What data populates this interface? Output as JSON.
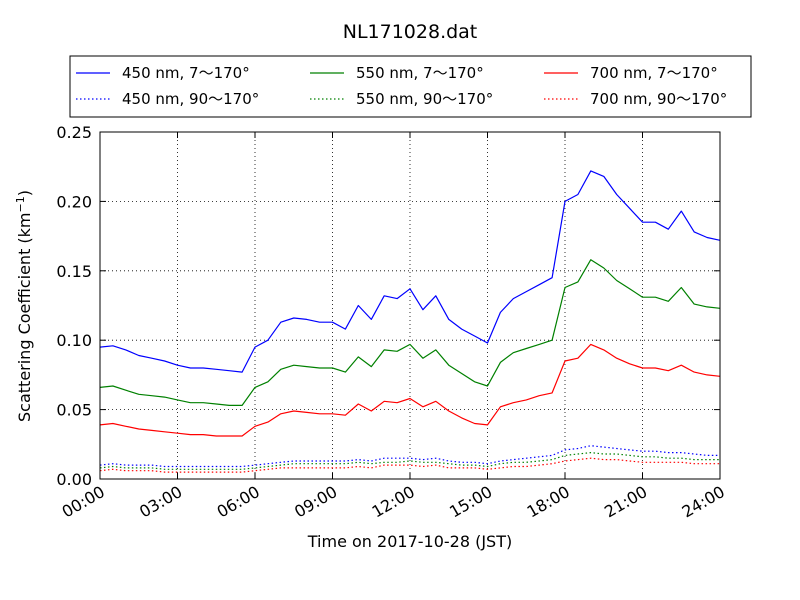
{
  "chart_data": {
    "type": "line",
    "title": "NL171028.dat",
    "xlabel": "Time on 2017-10-28 (JST)",
    "ylabel_main": "Scattering Coefficient (km",
    "ylabel_sup": "−1",
    "ylabel_close": ")",
    "xlim": [
      0,
      24
    ],
    "ylim": [
      0,
      0.25
    ],
    "grid": true,
    "legend_position": "top",
    "x_ticks": [
      0,
      3,
      6,
      9,
      12,
      15,
      18,
      21,
      24
    ],
    "x_tick_labels": [
      "00:00",
      "03:00",
      "06:00",
      "09:00",
      "12:00",
      "15:00",
      "18:00",
      "21:00",
      "24:00"
    ],
    "y_ticks": [
      0,
      0.05,
      0.1,
      0.15,
      0.2,
      0.25
    ],
    "y_tick_labels": [
      "0.00",
      "0.05",
      "0.10",
      "0.15",
      "0.20",
      "0.25"
    ],
    "x": [
      0,
      0.5,
      1,
      1.5,
      2,
      2.5,
      3,
      3.5,
      4,
      4.5,
      5,
      5.5,
      6,
      6.5,
      7,
      7.5,
      8,
      8.5,
      9,
      9.5,
      10,
      10.5,
      11,
      11.5,
      12,
      12.5,
      13,
      13.5,
      14,
      14.5,
      15,
      15.5,
      16,
      16.5,
      17,
      17.5,
      18,
      18.5,
      19,
      19.5,
      20,
      20.5,
      21,
      21.5,
      22,
      22.5,
      23,
      23.5,
      24
    ],
    "series": [
      {
        "name": "450 nm, 7～170°",
        "color": "#0000ff",
        "style": "solid",
        "values": [
          0.095,
          0.096,
          0.093,
          0.089,
          0.087,
          0.085,
          0.082,
          0.08,
          0.08,
          0.079,
          0.078,
          0.077,
          0.095,
          0.1,
          0.113,
          0.116,
          0.115,
          0.113,
          0.113,
          0.108,
          0.125,
          0.115,
          0.132,
          0.13,
          0.137,
          0.122,
          0.132,
          0.115,
          0.108,
          0.103,
          0.098,
          0.12,
          0.13,
          0.135,
          0.14,
          0.145,
          0.2,
          0.205,
          0.222,
          0.218,
          0.205,
          0.195,
          0.185,
          0.185,
          0.18,
          0.193,
          0.178,
          0.174,
          0.172
        ]
      },
      {
        "name": "550 nm, 7～170°",
        "color": "#008000",
        "style": "solid",
        "values": [
          0.066,
          0.067,
          0.064,
          0.061,
          0.06,
          0.059,
          0.057,
          0.055,
          0.055,
          0.054,
          0.053,
          0.053,
          0.066,
          0.07,
          0.079,
          0.082,
          0.081,
          0.08,
          0.08,
          0.077,
          0.088,
          0.081,
          0.093,
          0.092,
          0.097,
          0.087,
          0.093,
          0.082,
          0.076,
          0.07,
          0.067,
          0.084,
          0.091,
          0.094,
          0.097,
          0.1,
          0.138,
          0.142,
          0.158,
          0.152,
          0.143,
          0.137,
          0.131,
          0.131,
          0.128,
          0.138,
          0.126,
          0.124,
          0.123
        ]
      },
      {
        "name": "700 nm, 7～170°",
        "color": "#ff0000",
        "style": "solid",
        "values": [
          0.039,
          0.04,
          0.038,
          0.036,
          0.035,
          0.034,
          0.033,
          0.032,
          0.032,
          0.031,
          0.031,
          0.031,
          0.038,
          0.041,
          0.047,
          0.049,
          0.048,
          0.047,
          0.047,
          0.046,
          0.054,
          0.049,
          0.056,
          0.055,
          0.058,
          0.052,
          0.056,
          0.049,
          0.044,
          0.04,
          0.039,
          0.052,
          0.055,
          0.057,
          0.06,
          0.062,
          0.085,
          0.087,
          0.097,
          0.093,
          0.087,
          0.083,
          0.08,
          0.08,
          0.078,
          0.082,
          0.077,
          0.075,
          0.074
        ]
      },
      {
        "name": "450 nm, 90～170°",
        "color": "#0000ff",
        "style": "dotted",
        "values": [
          0.01,
          0.011,
          0.01,
          0.01,
          0.01,
          0.009,
          0.009,
          0.009,
          0.009,
          0.009,
          0.009,
          0.009,
          0.01,
          0.011,
          0.012,
          0.013,
          0.013,
          0.013,
          0.013,
          0.013,
          0.014,
          0.013,
          0.015,
          0.015,
          0.015,
          0.014,
          0.015,
          0.013,
          0.012,
          0.012,
          0.011,
          0.013,
          0.014,
          0.015,
          0.016,
          0.017,
          0.021,
          0.022,
          0.024,
          0.023,
          0.022,
          0.021,
          0.02,
          0.02,
          0.019,
          0.019,
          0.018,
          0.017,
          0.017
        ]
      },
      {
        "name": "550 nm, 90～170°",
        "color": "#008000",
        "style": "dotted",
        "values": [
          0.008,
          0.009,
          0.008,
          0.008,
          0.008,
          0.007,
          0.007,
          0.007,
          0.007,
          0.007,
          0.007,
          0.007,
          0.008,
          0.009,
          0.01,
          0.011,
          0.011,
          0.011,
          0.011,
          0.011,
          0.012,
          0.011,
          0.012,
          0.012,
          0.013,
          0.012,
          0.012,
          0.011,
          0.01,
          0.01,
          0.009,
          0.011,
          0.012,
          0.012,
          0.013,
          0.014,
          0.017,
          0.018,
          0.019,
          0.018,
          0.018,
          0.017,
          0.016,
          0.016,
          0.015,
          0.015,
          0.014,
          0.014,
          0.014
        ]
      },
      {
        "name": "700 nm, 90～170°",
        "color": "#ff0000",
        "style": "dotted",
        "values": [
          0.006,
          0.007,
          0.006,
          0.006,
          0.006,
          0.005,
          0.005,
          0.005,
          0.005,
          0.005,
          0.005,
          0.005,
          0.006,
          0.007,
          0.008,
          0.008,
          0.008,
          0.008,
          0.008,
          0.008,
          0.009,
          0.008,
          0.01,
          0.01,
          0.01,
          0.009,
          0.01,
          0.008,
          0.008,
          0.008,
          0.007,
          0.008,
          0.009,
          0.009,
          0.01,
          0.011,
          0.013,
          0.014,
          0.015,
          0.014,
          0.014,
          0.013,
          0.012,
          0.012,
          0.012,
          0.012,
          0.011,
          0.011,
          0.011
        ]
      }
    ]
  }
}
